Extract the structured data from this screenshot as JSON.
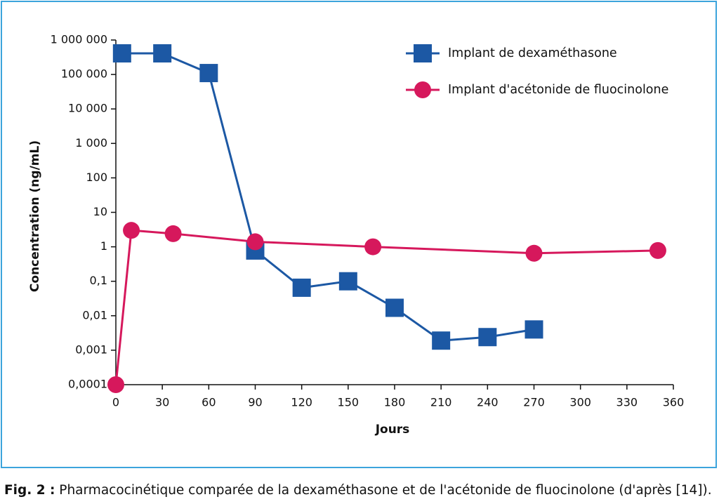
{
  "chart_data": {
    "type": "line",
    "ylabel": "Concentration (ng/mL)",
    "xlabel": "Jours",
    "log_y": true,
    "grid": false,
    "legend": "upper right",
    "xlim": [
      0,
      360
    ],
    "xticks": [
      0,
      30,
      60,
      90,
      120,
      150,
      180,
      210,
      240,
      270,
      300,
      330,
      360
    ],
    "ylim": [
      0.0001,
      1000000
    ],
    "yticks": [
      {
        "value": 0.0001,
        "label": "0,0001"
      },
      {
        "value": 0.001,
        "label": "0,001"
      },
      {
        "value": 0.01,
        "label": "0,01"
      },
      {
        "value": 0.1,
        "label": "0,1"
      },
      1,
      10,
      100,
      {
        "value": 1000,
        "label": "1 000"
      },
      {
        "value": 10000,
        "label": "10 000"
      },
      {
        "value": 100000,
        "label": "100 000"
      },
      {
        "value": 1000000,
        "label": "1 000 000"
      }
    ],
    "series": [
      {
        "name": "Implant de dexaméthasone",
        "color": "#1c58a4",
        "marker": "square",
        "x": [
          4,
          30,
          60,
          90,
          120,
          150,
          180,
          210,
          240,
          270
        ],
        "values": [
          410000,
          410000,
          110000,
          0.78,
          0.065,
          0.1,
          0.017,
          0.0019,
          0.0024,
          0.004
        ]
      },
      {
        "name": "Implant d'acétonide de fluocinolone",
        "color": "#d6185c",
        "marker": "circle",
        "x": [
          0,
          10,
          37,
          90,
          166,
          270,
          350
        ],
        "values": [
          0.0001,
          3.0,
          2.4,
          1.4,
          1.0,
          0.65,
          0.78
        ]
      }
    ]
  },
  "caption": {
    "label": "Fig. 2 :",
    "text": "Pharmacocinétique comparée de la dexaméthasone et de l'acétonide de fluocinolone (d'après [14])."
  }
}
